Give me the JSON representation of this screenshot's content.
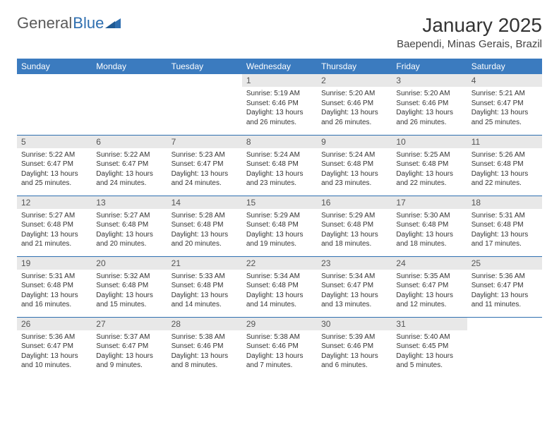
{
  "logo": {
    "text_gray": "General",
    "text_blue": "Blue",
    "icon_color": "#2f6fb0"
  },
  "title": "January 2025",
  "location": "Baependi, Minas Gerais, Brazil",
  "colors": {
    "header_bg": "#3b7bbf",
    "header_text": "#ffffff",
    "daynum_bg": "#e8e8e8",
    "daynum_text": "#555555",
    "row_border": "#2f6fb0",
    "body_text": "#333333",
    "page_bg": "#ffffff"
  },
  "weekdays": [
    "Sunday",
    "Monday",
    "Tuesday",
    "Wednesday",
    "Thursday",
    "Friday",
    "Saturday"
  ],
  "weeks": [
    [
      null,
      null,
      null,
      {
        "n": "1",
        "sunrise": "5:19 AM",
        "sunset": "6:46 PM",
        "daylight": "13 hours and 26 minutes."
      },
      {
        "n": "2",
        "sunrise": "5:20 AM",
        "sunset": "6:46 PM",
        "daylight": "13 hours and 26 minutes."
      },
      {
        "n": "3",
        "sunrise": "5:20 AM",
        "sunset": "6:46 PM",
        "daylight": "13 hours and 26 minutes."
      },
      {
        "n": "4",
        "sunrise": "5:21 AM",
        "sunset": "6:47 PM",
        "daylight": "13 hours and 25 minutes."
      }
    ],
    [
      {
        "n": "5",
        "sunrise": "5:22 AM",
        "sunset": "6:47 PM",
        "daylight": "13 hours and 25 minutes."
      },
      {
        "n": "6",
        "sunrise": "5:22 AM",
        "sunset": "6:47 PM",
        "daylight": "13 hours and 24 minutes."
      },
      {
        "n": "7",
        "sunrise": "5:23 AM",
        "sunset": "6:47 PM",
        "daylight": "13 hours and 24 minutes."
      },
      {
        "n": "8",
        "sunrise": "5:24 AM",
        "sunset": "6:48 PM",
        "daylight": "13 hours and 23 minutes."
      },
      {
        "n": "9",
        "sunrise": "5:24 AM",
        "sunset": "6:48 PM",
        "daylight": "13 hours and 23 minutes."
      },
      {
        "n": "10",
        "sunrise": "5:25 AM",
        "sunset": "6:48 PM",
        "daylight": "13 hours and 22 minutes."
      },
      {
        "n": "11",
        "sunrise": "5:26 AM",
        "sunset": "6:48 PM",
        "daylight": "13 hours and 22 minutes."
      }
    ],
    [
      {
        "n": "12",
        "sunrise": "5:27 AM",
        "sunset": "6:48 PM",
        "daylight": "13 hours and 21 minutes."
      },
      {
        "n": "13",
        "sunrise": "5:27 AM",
        "sunset": "6:48 PM",
        "daylight": "13 hours and 20 minutes."
      },
      {
        "n": "14",
        "sunrise": "5:28 AM",
        "sunset": "6:48 PM",
        "daylight": "13 hours and 20 minutes."
      },
      {
        "n": "15",
        "sunrise": "5:29 AM",
        "sunset": "6:48 PM",
        "daylight": "13 hours and 19 minutes."
      },
      {
        "n": "16",
        "sunrise": "5:29 AM",
        "sunset": "6:48 PM",
        "daylight": "13 hours and 18 minutes."
      },
      {
        "n": "17",
        "sunrise": "5:30 AM",
        "sunset": "6:48 PM",
        "daylight": "13 hours and 18 minutes."
      },
      {
        "n": "18",
        "sunrise": "5:31 AM",
        "sunset": "6:48 PM",
        "daylight": "13 hours and 17 minutes."
      }
    ],
    [
      {
        "n": "19",
        "sunrise": "5:31 AM",
        "sunset": "6:48 PM",
        "daylight": "13 hours and 16 minutes."
      },
      {
        "n": "20",
        "sunrise": "5:32 AM",
        "sunset": "6:48 PM",
        "daylight": "13 hours and 15 minutes."
      },
      {
        "n": "21",
        "sunrise": "5:33 AM",
        "sunset": "6:48 PM",
        "daylight": "13 hours and 14 minutes."
      },
      {
        "n": "22",
        "sunrise": "5:34 AM",
        "sunset": "6:48 PM",
        "daylight": "13 hours and 14 minutes."
      },
      {
        "n": "23",
        "sunrise": "5:34 AM",
        "sunset": "6:47 PM",
        "daylight": "13 hours and 13 minutes."
      },
      {
        "n": "24",
        "sunrise": "5:35 AM",
        "sunset": "6:47 PM",
        "daylight": "13 hours and 12 minutes."
      },
      {
        "n": "25",
        "sunrise": "5:36 AM",
        "sunset": "6:47 PM",
        "daylight": "13 hours and 11 minutes."
      }
    ],
    [
      {
        "n": "26",
        "sunrise": "5:36 AM",
        "sunset": "6:47 PM",
        "daylight": "13 hours and 10 minutes."
      },
      {
        "n": "27",
        "sunrise": "5:37 AM",
        "sunset": "6:47 PM",
        "daylight": "13 hours and 9 minutes."
      },
      {
        "n": "28",
        "sunrise": "5:38 AM",
        "sunset": "6:46 PM",
        "daylight": "13 hours and 8 minutes."
      },
      {
        "n": "29",
        "sunrise": "5:38 AM",
        "sunset": "6:46 PM",
        "daylight": "13 hours and 7 minutes."
      },
      {
        "n": "30",
        "sunrise": "5:39 AM",
        "sunset": "6:46 PM",
        "daylight": "13 hours and 6 minutes."
      },
      {
        "n": "31",
        "sunrise": "5:40 AM",
        "sunset": "6:45 PM",
        "daylight": "13 hours and 5 minutes."
      },
      null
    ]
  ],
  "labels": {
    "sunrise": "Sunrise:",
    "sunset": "Sunset:",
    "daylight": "Daylight:"
  }
}
